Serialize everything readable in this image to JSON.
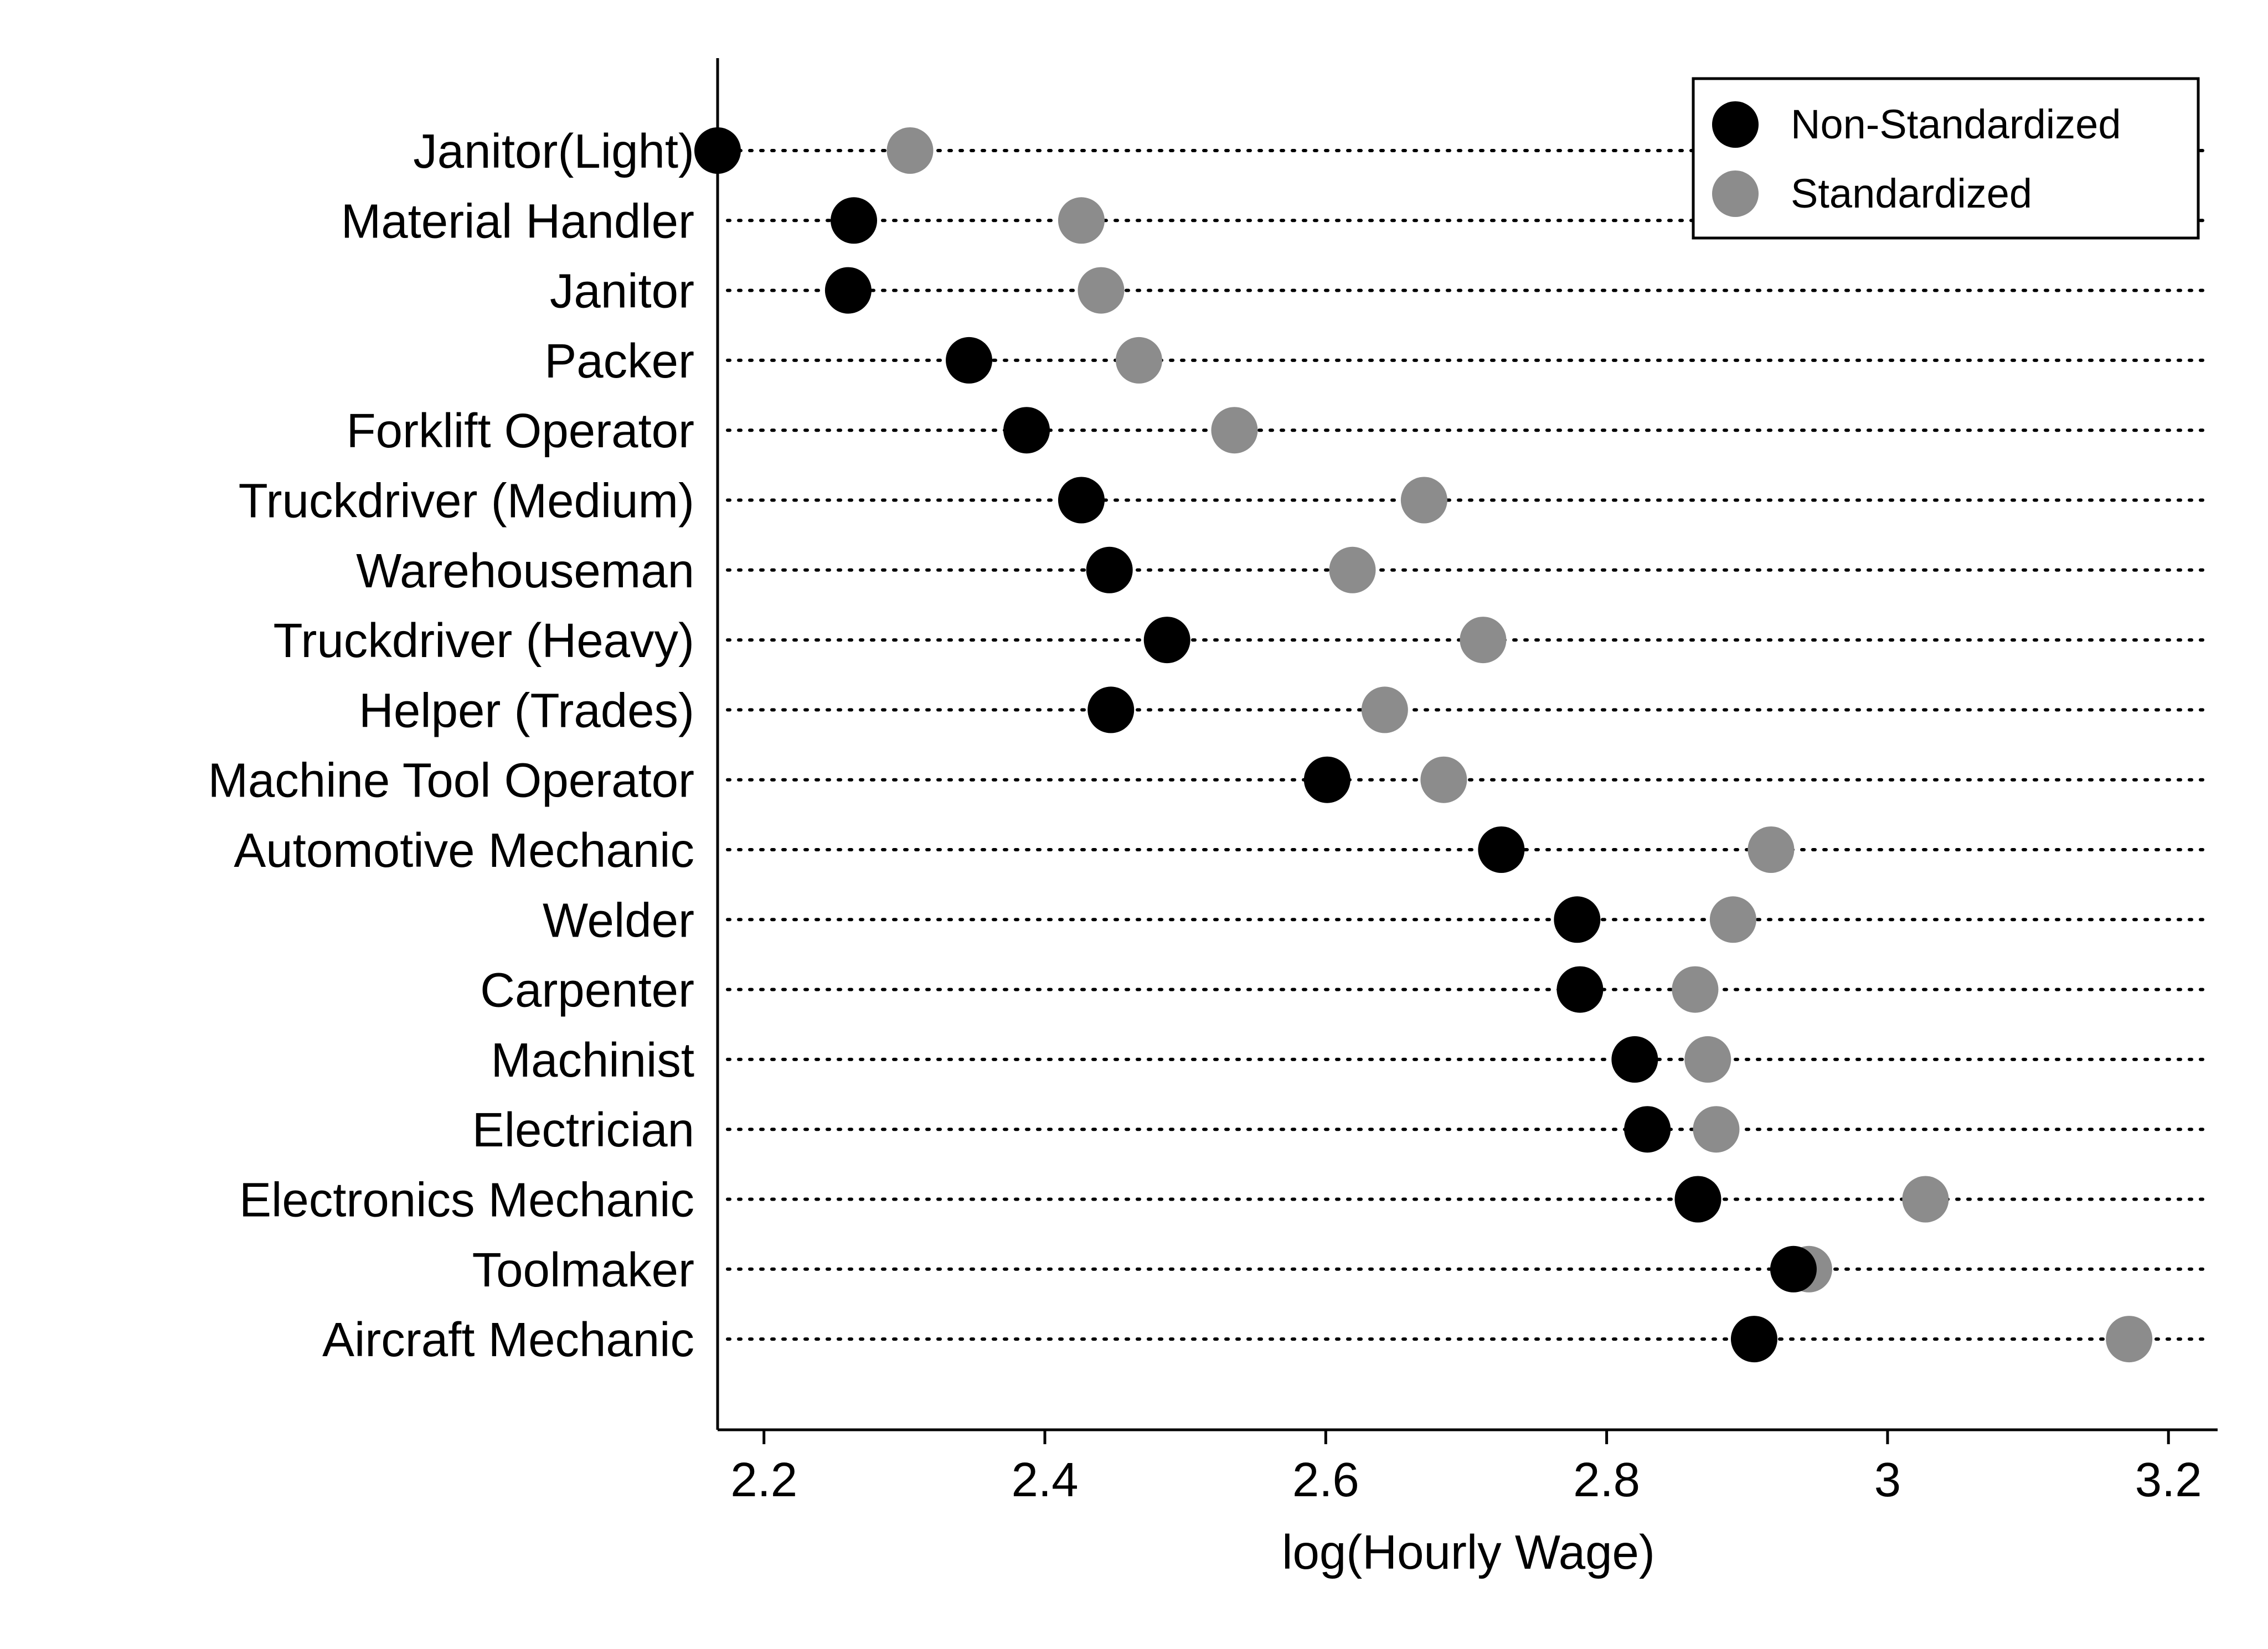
{
  "chart_data": {
    "type": "scatter",
    "title": "",
    "xlabel": "log(Hourly Wage)",
    "ylabel": "",
    "xlim": [
      2.167,
      3.235
    ],
    "xticks": [
      2.2,
      2.4,
      2.6,
      2.8,
      3,
      3.2
    ],
    "xtick_labels": [
      "2.2",
      "2.4",
      "2.6",
      "2.8",
      "3",
      "3.2"
    ],
    "grid": "dotted horizontal guide line per category",
    "legend_position": "top-right",
    "categories": [
      "Janitor(Light)",
      "Material Handler",
      "Janitor",
      "Packer",
      "Forklift Operator",
      "Truckdriver (Medium)",
      "Warehouseman",
      "Truckdriver (Heavy)",
      "Helper (Trades)",
      "Machine Tool Operator",
      "Automotive Mechanic",
      "Welder",
      "Carpenter",
      "Machinist",
      "Electrician",
      "Electronics Mechanic",
      "Toolmaker",
      "Aircraft Mechanic"
    ],
    "series": [
      {
        "name": "Non-Standardized",
        "color": "#000000",
        "values": [
          2.167,
          2.264,
          2.26,
          2.346,
          2.387,
          2.426,
          2.446,
          2.487,
          2.447,
          2.601,
          2.725,
          2.779,
          2.781,
          2.82,
          2.829,
          2.865,
          2.933,
          2.905
        ]
      },
      {
        "name": "Standardized",
        "color": "#8c8c8c",
        "values": [
          2.304,
          2.426,
          2.44,
          2.467,
          2.535,
          2.67,
          2.619,
          2.712,
          2.642,
          2.684,
          2.917,
          2.89,
          2.863,
          2.872,
          2.878,
          3.027,
          2.944,
          3.172
        ]
      }
    ]
  }
}
